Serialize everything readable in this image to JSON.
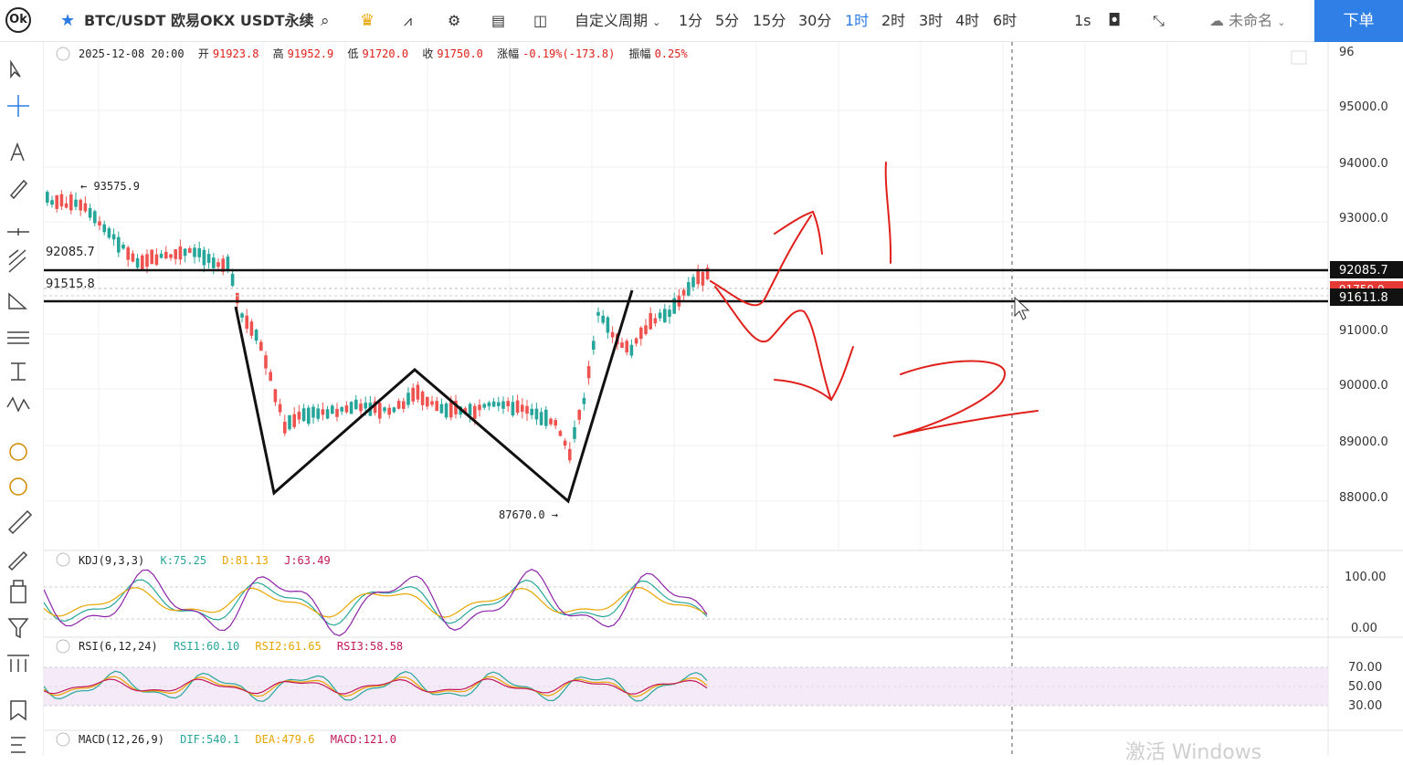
{
  "toolbar": {
    "symbol": "BTC/USDT 欧易OKX USDT永续",
    "custom_period": "自定义周期",
    "intervals": [
      "1分",
      "5分",
      "15分",
      "30分",
      "1时",
      "2时",
      "3时",
      "4时",
      "6时"
    ],
    "active_interval": "1时",
    "seconds": "1s",
    "layout_name": "未命名",
    "order_button": "下单"
  },
  "info_bar": {
    "datetime": "2025-12-08 20:00",
    "open_label": "开",
    "open": "91923.8",
    "high_label": "高",
    "high": "91952.9",
    "low_label": "低",
    "low": "91720.0",
    "close_label": "收",
    "close": "91750.0",
    "change_label": "涨幅",
    "change": "-0.19%(-173.8)",
    "amp_label": "振幅",
    "amp": "0.25%"
  },
  "price_axis": {
    "ticks": [
      "95000.0",
      "94000.0",
      "93000.0",
      "91000.0",
      "90000.0",
      "89000.0",
      "88000.0"
    ],
    "top_partial": "96",
    "tag_resistance": "92085.7",
    "tag_last": "91750.0",
    "tag_support": "91611.8"
  },
  "annotations": {
    "high_marker": "93575.9",
    "low_marker": "87670.0",
    "line_label_1": "92085.7",
    "line_label_2": "91515.8"
  },
  "kdj": {
    "title": "KDJ(9,3,3)",
    "k": "K:75.25",
    "d": "D:81.13",
    "j": "J:63.49",
    "ticks": [
      "100.00",
      "0.00"
    ]
  },
  "rsi": {
    "title": "RSI(6,12,24)",
    "r1": "RSI1:60.10",
    "r2": "RSI2:61.65",
    "r3": "RSI3:58.58",
    "ticks": [
      "70.00",
      "50.00",
      "30.00"
    ]
  },
  "macd": {
    "title": "MACD(12,26,9)",
    "dif": "DIF:540.1",
    "dea": "DEA:479.6",
    "macd": "MACD:121.0"
  },
  "watermark": "激活 Windows",
  "colors": {
    "up": "#26a69a",
    "down": "#ef5350",
    "accent": "#2a7be4",
    "drawing_red": "#e0201b"
  }
}
